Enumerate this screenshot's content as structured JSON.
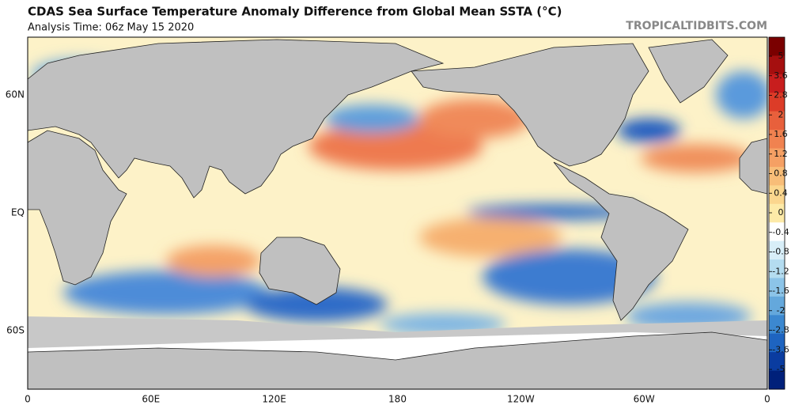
{
  "header": {
    "title": "CDAS Sea Surface Temperature Anomaly Difference from Global Mean SSTA (°C)",
    "subtitle": "Analysis Time: 06z May 15 2020",
    "credit": "TROPICALTIDBITS.COM"
  },
  "map": {
    "lat_labels": [
      "60N",
      "EQ",
      "60S"
    ],
    "lon_labels": [
      "0",
      "60E",
      "120E",
      "180",
      "120W",
      "60W",
      "0"
    ]
  },
  "colorbar": {
    "ticks": [
      5,
      3.6,
      2.8,
      2,
      1.6,
      1.2,
      0.8,
      0.4,
      0,
      -0.4,
      -0.8,
      -1.2,
      -1.6,
      -2,
      -2.8,
      -3.6,
      -5
    ],
    "colors": [
      "#7a0000",
      "#a50f0f",
      "#c81e1e",
      "#dc3c28",
      "#e8603c",
      "#f08250",
      "#f5a064",
      "#f8bd78",
      "#fbd68e",
      "#fdeaa8",
      "#ffffff",
      "#d8eef8",
      "#b4dcf0",
      "#8cc4e8",
      "#64a8dc",
      "#3c88d0",
      "#1e64c0",
      "#0a3ca0",
      "#00207a"
    ]
  }
}
